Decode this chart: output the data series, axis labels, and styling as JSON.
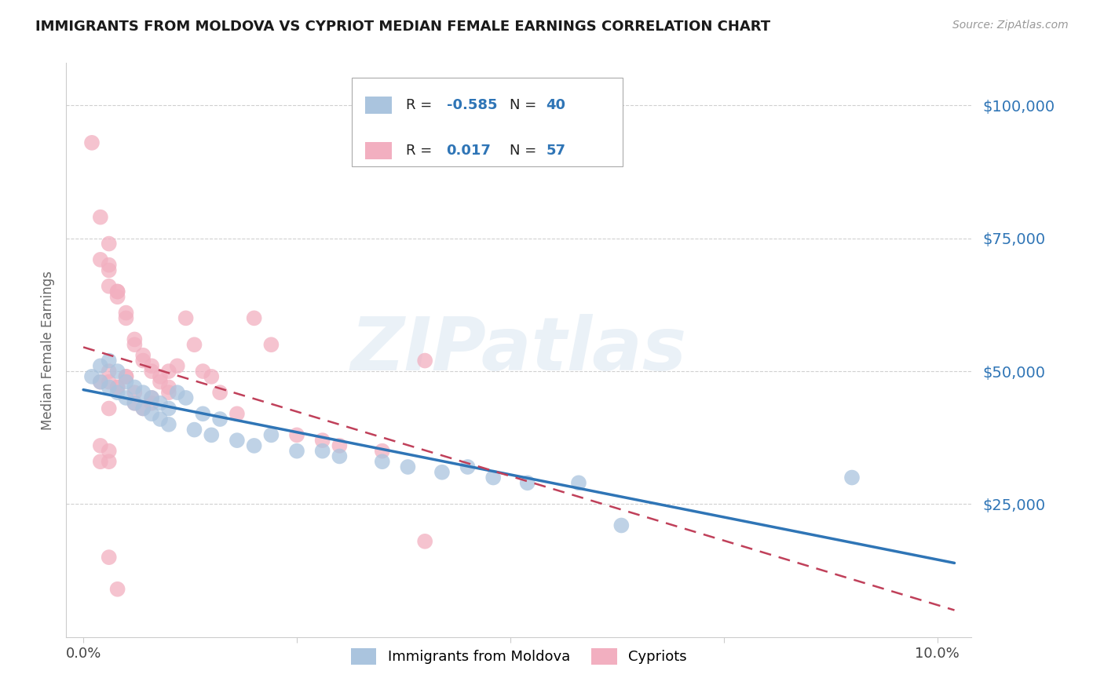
{
  "title": "IMMIGRANTS FROM MOLDOVA VS CYPRIOT MEDIAN FEMALE EARNINGS CORRELATION CHART",
  "source": "Source: ZipAtlas.com",
  "ylabel": "Median Female Earnings",
  "legend_labels": [
    "Immigrants from Moldova",
    "Cypriots"
  ],
  "legend_r": [
    "-0.585",
    "0.017"
  ],
  "legend_n": [
    "40",
    "57"
  ],
  "blue_color": "#aac4de",
  "pink_color": "#f2afc0",
  "blue_line_color": "#2f75b6",
  "pink_line_color": "#c0405a",
  "ytick_labels": [
    "$25,000",
    "$50,000",
    "$75,000",
    "$100,000"
  ],
  "ytick_values": [
    25000,
    50000,
    75000,
    100000
  ],
  "ylim": [
    0,
    108000
  ],
  "xlim": [
    -0.002,
    0.104
  ],
  "xtick_values": [
    0.0,
    0.025,
    0.05,
    0.075,
    0.1
  ],
  "xtick_labels": [
    "0.0%",
    "",
    "",
    "",
    "10.0%"
  ],
  "watermark": "ZIPatlas",
  "blue_scatter_x": [
    0.001,
    0.002,
    0.002,
    0.003,
    0.003,
    0.004,
    0.004,
    0.005,
    0.005,
    0.006,
    0.006,
    0.007,
    0.007,
    0.008,
    0.008,
    0.009,
    0.009,
    0.01,
    0.01,
    0.011,
    0.012,
    0.013,
    0.014,
    0.015,
    0.016,
    0.018,
    0.02,
    0.022,
    0.025,
    0.028,
    0.03,
    0.035,
    0.038,
    0.042,
    0.045,
    0.048,
    0.052,
    0.058,
    0.063,
    0.09
  ],
  "blue_scatter_y": [
    49000,
    48000,
    51000,
    47000,
    52000,
    46000,
    50000,
    45000,
    48000,
    44000,
    47000,
    43000,
    46000,
    45000,
    42000,
    44000,
    41000,
    43000,
    40000,
    46000,
    45000,
    39000,
    42000,
    38000,
    41000,
    37000,
    36000,
    38000,
    35000,
    35000,
    34000,
    33000,
    32000,
    31000,
    32000,
    30000,
    29000,
    29000,
    21000,
    30000
  ],
  "pink_scatter_x": [
    0.001,
    0.002,
    0.002,
    0.002,
    0.003,
    0.003,
    0.003,
    0.004,
    0.004,
    0.004,
    0.005,
    0.005,
    0.005,
    0.006,
    0.006,
    0.006,
    0.007,
    0.007,
    0.007,
    0.008,
    0.008,
    0.008,
    0.009,
    0.009,
    0.01,
    0.01,
    0.011,
    0.012,
    0.013,
    0.014,
    0.015,
    0.016,
    0.018,
    0.02,
    0.022,
    0.025,
    0.028,
    0.03,
    0.035,
    0.04,
    0.003,
    0.004,
    0.005,
    0.006,
    0.008,
    0.01,
    0.003,
    0.003,
    0.002,
    0.004,
    0.002,
    0.004,
    0.003,
    0.04,
    0.003,
    0.003,
    0.003
  ],
  "pink_scatter_y": [
    93000,
    79000,
    71000,
    48000,
    74000,
    69000,
    50000,
    64000,
    65000,
    47000,
    60000,
    61000,
    49000,
    55000,
    56000,
    46000,
    52000,
    53000,
    43000,
    50000,
    51000,
    44000,
    49000,
    48000,
    50000,
    47000,
    51000,
    60000,
    55000,
    50000,
    49000,
    46000,
    42000,
    60000,
    55000,
    38000,
    37000,
    36000,
    35000,
    52000,
    66000,
    65000,
    49000,
    44000,
    45000,
    46000,
    35000,
    15000,
    33000,
    47000,
    36000,
    9000,
    70000,
    18000,
    48000,
    43000,
    33000
  ]
}
